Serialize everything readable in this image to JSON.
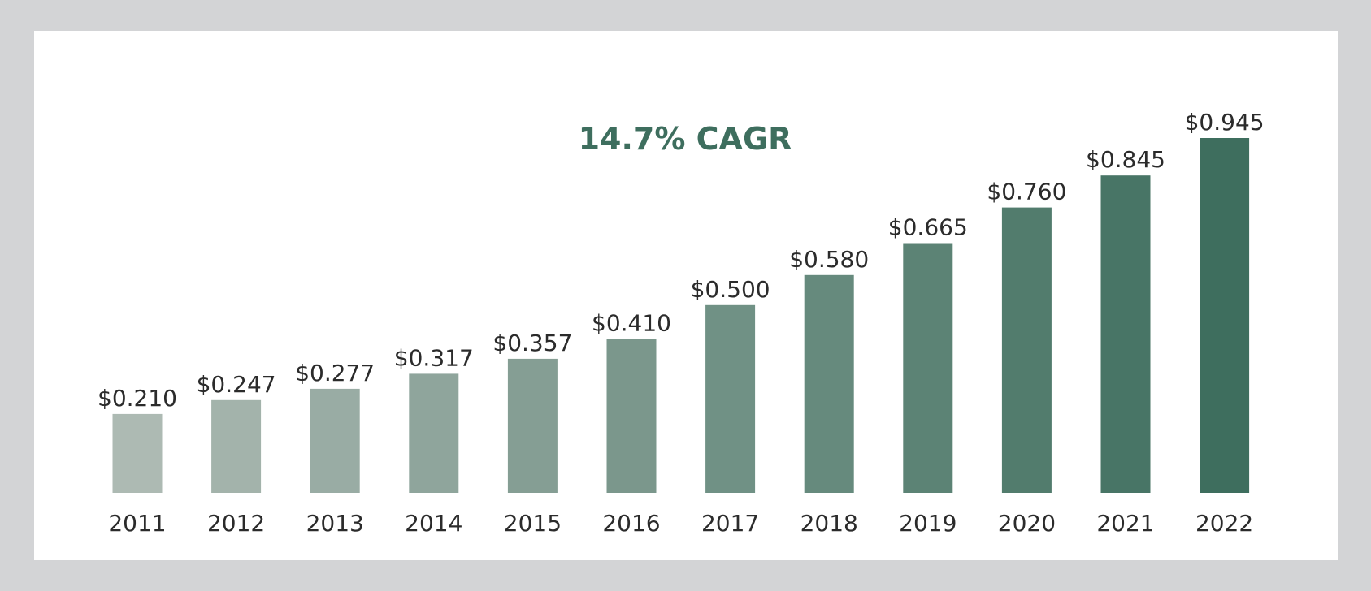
{
  "chart_data": {
    "type": "bar",
    "categories": [
      "2011",
      "2012",
      "2013",
      "2014",
      "2015",
      "2016",
      "2017",
      "2018",
      "2019",
      "2020",
      "2021",
      "2022"
    ],
    "values": [
      0.21,
      0.247,
      0.277,
      0.317,
      0.357,
      0.41,
      0.5,
      0.58,
      0.665,
      0.76,
      0.845,
      0.945
    ],
    "value_labels": [
      "$0.210",
      "$0.247",
      "$0.277",
      "$0.317",
      "$0.357",
      "$0.410",
      "$0.500",
      "$0.580",
      "$0.665",
      "$0.760",
      "$0.845",
      "$0.945"
    ],
    "annotation": "14.7% CAGR",
    "title": "",
    "xlabel": "",
    "ylabel": "",
    "ylim": [
      0,
      0.945
    ],
    "grid": false,
    "colors": {
      "light": "#adbab3",
      "dark": "#3e6e5e",
      "annotation": "#3e6e5e"
    }
  }
}
